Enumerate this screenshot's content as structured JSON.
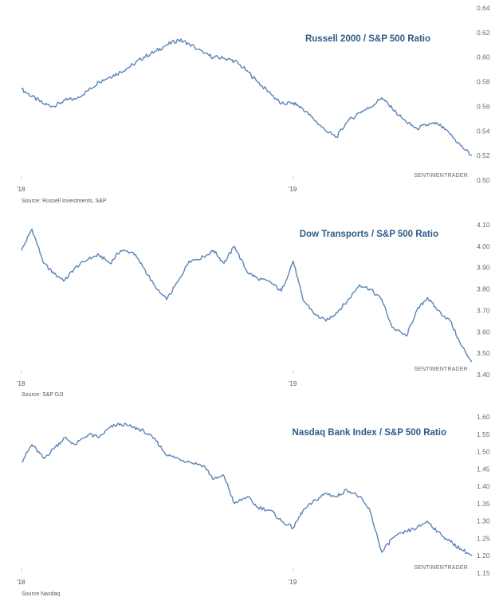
{
  "chart_data": [
    {
      "type": "line",
      "title": "Russell 2000  / S&P 500 Ratio",
      "watermark": "SENTIMENTRADER",
      "source": "Source: Russell Investments, S&P",
      "x_ticks": [
        "'18",
        "'19"
      ],
      "y_ticks": [
        "0.64",
        "0.62",
        "0.60",
        "0.58",
        "0.56",
        "0.54",
        "0.52",
        "0.50"
      ],
      "ylim": [
        0.5,
        0.64
      ],
      "grid": false,
      "color": "#5b84b8",
      "series": [
        {
          "x": [
            "2018-01-02",
            "2018-01-16",
            "2018-02-01",
            "2018-02-15",
            "2018-03-01",
            "2018-03-15",
            "2018-04-02",
            "2018-04-16",
            "2018-05-01",
            "2018-05-15",
            "2018-06-01",
            "2018-06-15",
            "2018-07-02",
            "2018-07-16",
            "2018-08-01",
            "2018-08-15",
            "2018-09-04",
            "2018-09-17",
            "2018-10-01",
            "2018-10-15",
            "2018-11-01",
            "2018-11-15",
            "2018-12-03",
            "2018-12-17",
            "2019-01-02",
            "2019-01-15",
            "2019-02-01",
            "2019-02-15",
            "2019-03-01",
            "2019-03-15",
            "2019-04-01",
            "2019-04-15",
            "2019-05-01",
            "2019-05-15",
            "2019-06-03",
            "2019-06-17",
            "2019-07-01",
            "2019-07-15",
            "2019-08-01",
            "2019-08-15",
            "2019-08-30"
          ],
          "y": [
            0.574,
            0.568,
            0.562,
            0.56,
            0.565,
            0.566,
            0.573,
            0.58,
            0.584,
            0.588,
            0.594,
            0.6,
            0.605,
            0.61,
            0.614,
            0.611,
            0.603,
            0.6,
            0.599,
            0.597,
            0.589,
            0.58,
            0.57,
            0.562,
            0.563,
            0.558,
            0.548,
            0.54,
            0.535,
            0.547,
            0.555,
            0.559,
            0.567,
            0.558,
            0.547,
            0.542,
            0.545,
            0.546,
            0.537,
            0.528,
            0.52
          ]
        }
      ]
    },
    {
      "type": "line",
      "title": "Dow Transports / S&P 500 Ratio",
      "watermark": "SENTIMENTRADER",
      "source": "Source: S&P DJI",
      "x_ticks": [
        "'18",
        "'19"
      ],
      "y_ticks": [
        "4.10",
        "4.00",
        "3.90",
        "3.80",
        "3.70",
        "3.60",
        "3.50",
        "3.40"
      ],
      "ylim": [
        3.4,
        4.1
      ],
      "grid": false,
      "color": "#5b84b8",
      "series": [
        {
          "x": [
            "2018-01-02",
            "2018-01-16",
            "2018-02-01",
            "2018-02-15",
            "2018-03-01",
            "2018-03-15",
            "2018-04-02",
            "2018-04-16",
            "2018-05-01",
            "2018-05-15",
            "2018-06-01",
            "2018-06-15",
            "2018-07-02",
            "2018-07-16",
            "2018-08-01",
            "2018-08-15",
            "2018-09-04",
            "2018-09-17",
            "2018-10-01",
            "2018-10-15",
            "2018-11-01",
            "2018-11-15",
            "2018-12-03",
            "2018-12-17",
            "2019-01-02",
            "2019-01-15",
            "2019-02-01",
            "2019-02-15",
            "2019-03-01",
            "2019-03-15",
            "2019-04-01",
            "2019-04-15",
            "2019-05-01",
            "2019-05-15",
            "2019-06-03",
            "2019-06-17",
            "2019-07-01",
            "2019-07-15",
            "2019-08-01",
            "2019-08-15",
            "2019-08-30"
          ],
          "y": [
            3.98,
            4.08,
            3.92,
            3.87,
            3.84,
            3.9,
            3.94,
            3.96,
            3.92,
            3.98,
            3.97,
            3.9,
            3.8,
            3.75,
            3.84,
            3.93,
            3.95,
            3.98,
            3.92,
            4.0,
            3.88,
            3.85,
            3.83,
            3.79,
            3.93,
            3.75,
            3.68,
            3.65,
            3.69,
            3.74,
            3.82,
            3.8,
            3.75,
            3.62,
            3.58,
            3.7,
            3.76,
            3.7,
            3.65,
            3.54,
            3.46
          ]
        }
      ]
    },
    {
      "type": "line",
      "title": "Nasdaq Bank Index / S&P 500 Ratio",
      "watermark": "SENTIMENTRADER",
      "source": "Source Nasdaq",
      "x_ticks": [
        "'18",
        "'19"
      ],
      "y_ticks": [
        "1.60",
        "1.55",
        "1.50",
        "1.45",
        "1.40",
        "1.35",
        "1.30",
        "1.25",
        "1.20",
        "1.15"
      ],
      "ylim": [
        1.15,
        1.6
      ],
      "grid": false,
      "color": "#5b84b8",
      "series": [
        {
          "x": [
            "2018-01-02",
            "2018-01-16",
            "2018-02-01",
            "2018-02-15",
            "2018-03-01",
            "2018-03-15",
            "2018-04-02",
            "2018-04-16",
            "2018-05-01",
            "2018-05-15",
            "2018-06-01",
            "2018-06-15",
            "2018-07-02",
            "2018-07-16",
            "2018-08-01",
            "2018-08-15",
            "2018-09-04",
            "2018-09-17",
            "2018-10-01",
            "2018-10-15",
            "2018-11-01",
            "2018-11-15",
            "2018-12-03",
            "2018-12-17",
            "2019-01-02",
            "2019-01-15",
            "2019-02-01",
            "2019-02-15",
            "2019-03-01",
            "2019-03-15",
            "2019-04-01",
            "2019-04-15",
            "2019-05-01",
            "2019-05-15",
            "2019-06-03",
            "2019-06-17",
            "2019-07-01",
            "2019-07-15",
            "2019-08-01",
            "2019-08-15",
            "2019-08-30"
          ],
          "y": [
            1.47,
            1.52,
            1.48,
            1.51,
            1.54,
            1.52,
            1.55,
            1.54,
            1.57,
            1.58,
            1.57,
            1.56,
            1.53,
            1.49,
            1.48,
            1.47,
            1.46,
            1.42,
            1.43,
            1.35,
            1.37,
            1.34,
            1.33,
            1.3,
            1.28,
            1.33,
            1.36,
            1.38,
            1.37,
            1.39,
            1.37,
            1.33,
            1.21,
            1.25,
            1.27,
            1.28,
            1.3,
            1.27,
            1.24,
            1.22,
            1.2
          ]
        }
      ]
    }
  ]
}
